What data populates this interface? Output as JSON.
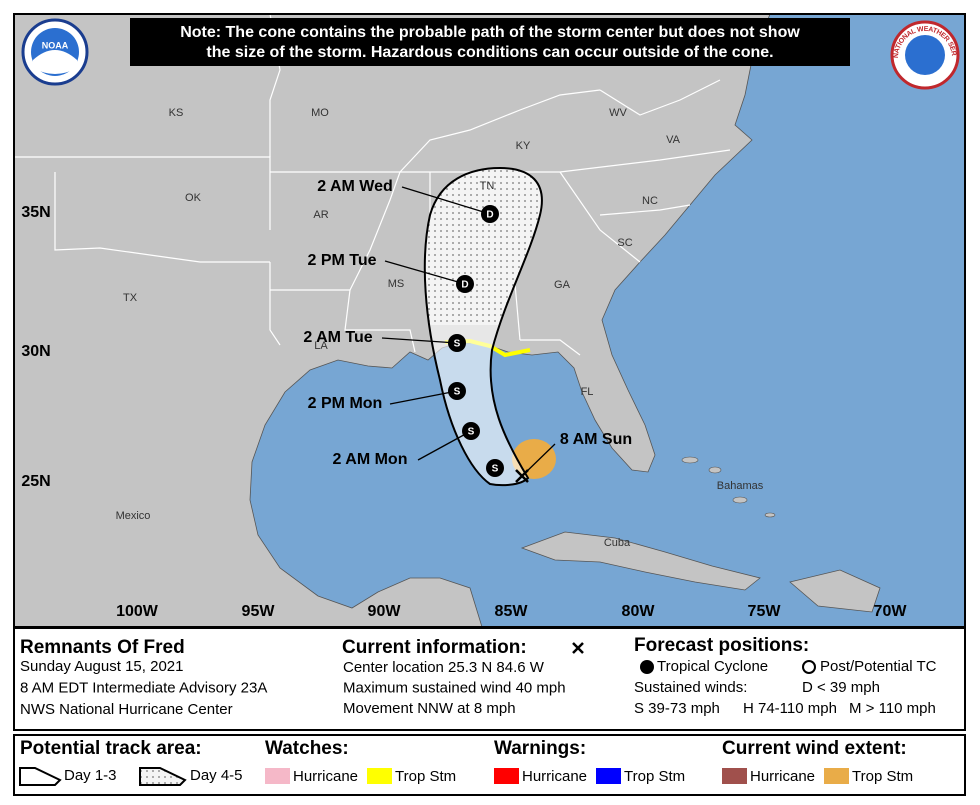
{
  "note": {
    "lines": [
      "Note: The cone contains the probable path of the storm center but does not show",
      "the size of the storm. Hazardous conditions can occur outside of the cone."
    ]
  },
  "logos": {
    "noaa": "NOAA",
    "nws": "NATIONAL WEATHER SERVICE"
  },
  "map": {
    "region_labels": [
      "KS",
      "MO",
      "KY",
      "WV",
      "VA",
      "OK",
      "AR",
      "TN",
      "NC",
      "SC",
      "MS",
      "GA",
      "TX",
      "LA",
      "FL",
      "Bahamas",
      "Cuba",
      "Mexico"
    ],
    "lat_labels": [
      "35N",
      "30N",
      "25N"
    ],
    "lon_labels": [
      "100W",
      "95W",
      "90W",
      "85W",
      "80W",
      "75W",
      "70W"
    ],
    "forecast_points": [
      {
        "label": "2 AM Wed",
        "symbol": "D"
      },
      {
        "label": "2 PM Tue",
        "symbol": "D"
      },
      {
        "label": "2 AM Tue",
        "symbol": "S"
      },
      {
        "label": "2 PM Mon",
        "symbol": "S"
      },
      {
        "label": "2 AM Mon",
        "symbol": "S"
      },
      {
        "symbol": "S"
      }
    ],
    "current_position": {
      "label": "8 AM Sun"
    }
  },
  "info": {
    "storm_name": "Remnants Of Fred",
    "lines": [
      "Sunday August 15, 2021",
      "8 AM EDT Intermediate Advisory 23A",
      "NWS National Hurricane Center"
    ],
    "current": {
      "heading": "Current information:",
      "lines": [
        "Center location 25.3 N 84.6 W",
        "Maximum sustained wind 40 mph",
        "Movement NNW at 8 mph"
      ]
    },
    "forecast": {
      "heading": "Forecast positions:",
      "tropical": "Tropical Cyclone",
      "post": "Post/Potential TC",
      "winds_label": "Sustained winds:",
      "d": "D < 39 mph",
      "s": "S 39-73 mph",
      "h": "H 74-110 mph",
      "m": "M > 110 mph"
    }
  },
  "legend": {
    "track": {
      "heading": "Potential track area:",
      "items": [
        "Day 1-3",
        "Day 4-5"
      ]
    },
    "watches": {
      "heading": "Watches:",
      "items": [
        "Hurricane",
        "Trop Stm"
      ]
    },
    "warnings": {
      "heading": "Warnings:",
      "items": [
        "Hurricane",
        "Trop Stm"
      ]
    },
    "wind": {
      "heading": "Current wind extent:",
      "items": [
        "Hurricane",
        "Trop Stm"
      ]
    }
  }
}
